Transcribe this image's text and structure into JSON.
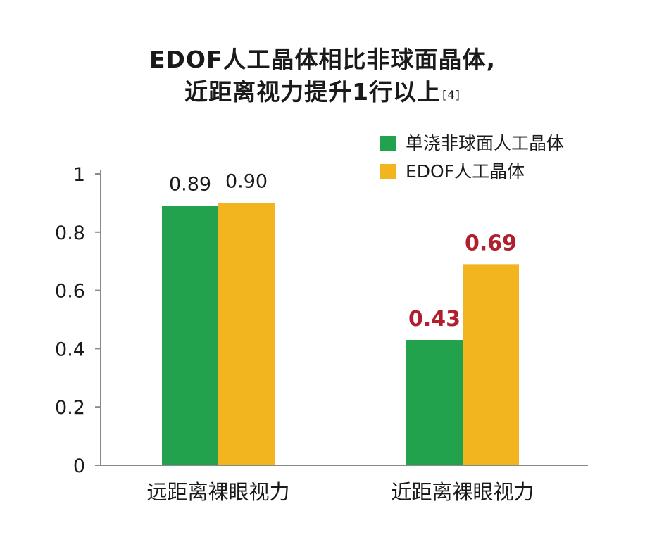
{
  "chart_data": {
    "type": "bar",
    "title_line1": "EDOF人工晶体相比非球面晶体,",
    "title_line2": "近距离视力提升1行以上",
    "title_ref": "[4]",
    "categories": [
      "远距离裸眼视力",
      "近距离裸眼视力"
    ],
    "series": [
      {
        "name": "单浇非球面人工晶体",
        "color": "#23a24d",
        "values": [
          0.89,
          0.43
        ]
      },
      {
        "name": "EDOF人工晶体",
        "color": "#f3b51f",
        "values": [
          0.9,
          0.69
        ]
      }
    ],
    "data_labels": [
      {
        "text": "0.89",
        "emphasis": false
      },
      {
        "text": "0.43",
        "emphasis": true
      },
      {
        "text": "0.90",
        "emphasis": false
      },
      {
        "text": "0.69",
        "emphasis": true
      }
    ],
    "ylim": [
      0,
      1
    ],
    "yticks": [
      "0",
      "0.2",
      "0.4",
      "0.6",
      "0.8",
      "1"
    ],
    "xlabel": "",
    "ylabel": "",
    "grid": false,
    "legend_position": "top-right",
    "emphasis_color": "#b11f2e"
  }
}
